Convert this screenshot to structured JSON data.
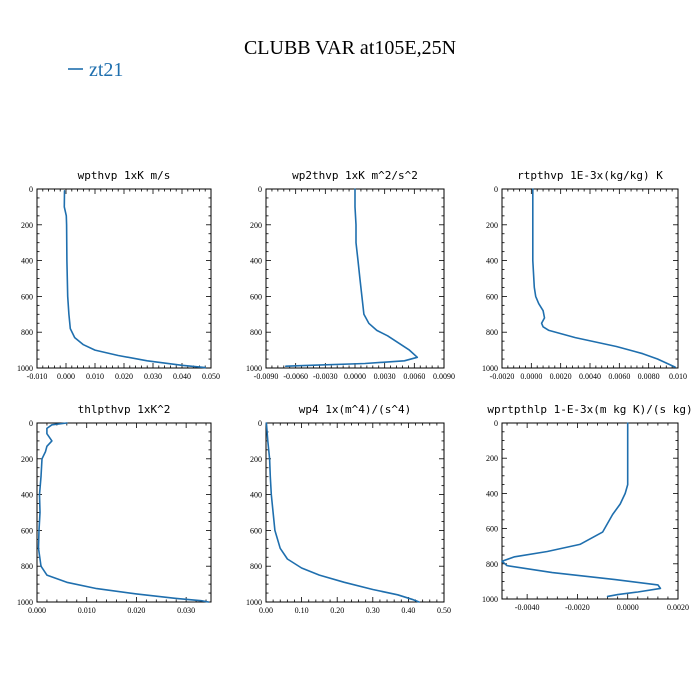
{
  "title": "CLUBB VAR at105E,25N",
  "legend": {
    "label": "zt21",
    "color": "#1f6fae"
  },
  "chart_data": [
    {
      "type": "line",
      "title": "wpthvp  1xK m/s",
      "xlim": [
        -0.01,
        0.05
      ],
      "ylim": [
        0,
        1000
      ],
      "y_inverted": true,
      "xticks": [
        -0.01,
        0.0,
        0.01,
        0.02,
        0.03,
        0.04,
        0.05
      ],
      "xtick_labels": [
        "-0.010",
        "0.000",
        "0.010",
        "0.020",
        "0.030",
        "0.040",
        "0.050"
      ],
      "yticks": [
        0,
        200,
        400,
        600,
        800,
        1000
      ],
      "series": [
        {
          "x": [
            -0.0005,
            -0.0006,
            0.0001,
            0.0002,
            0.0003,
            0.0006,
            0.001,
            0.0015,
            0.003,
            0.006,
            0.01,
            0.018,
            0.028,
            0.04,
            0.048
          ],
          "y": [
            10,
            100,
            150,
            200,
            400,
            600,
            700,
            780,
            830,
            870,
            900,
            930,
            960,
            985,
            998
          ]
        }
      ]
    },
    {
      "type": "line",
      "title": "wp2thvp  1xK m^2/s^2",
      "xlim": [
        -0.009,
        0.009
      ],
      "ylim": [
        0,
        1000
      ],
      "y_inverted": true,
      "xticks": [
        -0.009,
        -0.006,
        -0.003,
        0.0,
        0.003,
        0.006,
        0.009
      ],
      "xtick_labels": [
        "-0.0090",
        "-0.0060",
        "-0.0030",
        "0.0000",
        "0.0030",
        "0.0060",
        "0.0090"
      ],
      "yticks": [
        0,
        200,
        400,
        600,
        800,
        1000
      ],
      "series": [
        {
          "x": [
            0.0,
            0.0,
            0.0001,
            0.0001,
            0.0003,
            0.0005,
            0.0007,
            0.0009,
            0.0014,
            0.0022,
            0.0033,
            0.0044,
            0.0055,
            0.0063,
            0.005,
            0.001,
            -0.0045,
            -0.007
          ],
          "y": [
            0,
            100,
            200,
            300,
            400,
            500,
            600,
            700,
            750,
            790,
            820,
            860,
            900,
            940,
            960,
            975,
            985,
            990
          ]
        }
      ]
    },
    {
      "type": "line",
      "title": "rtpthvp  1E-3x(kg/kg) K",
      "xlim": [
        -0.002,
        0.01
      ],
      "ylim": [
        0,
        1000
      ],
      "y_inverted": true,
      "xticks": [
        -0.002,
        0.0,
        0.002,
        0.004,
        0.006,
        0.008,
        0.01
      ],
      "xtick_labels": [
        "-0.0020",
        "0.0000",
        "0.0020",
        "0.0040",
        "0.0060",
        "0.0080",
        "0.010"
      ],
      "yticks": [
        0,
        200,
        400,
        600,
        800,
        1000
      ],
      "series": [
        {
          "x": [
            0.0001,
            0.0001,
            0.0001,
            0.0002,
            0.0003,
            0.0005,
            0.0008,
            0.0009,
            0.0007,
            0.0008,
            0.0012,
            0.003,
            0.0058,
            0.0076,
            0.0086,
            0.0094,
            0.0098
          ],
          "y": [
            0,
            200,
            400,
            550,
            600,
            640,
            680,
            720,
            750,
            770,
            790,
            830,
            880,
            920,
            950,
            980,
            995
          ]
        }
      ]
    },
    {
      "type": "line",
      "title": "thlpthvp  1xK^2",
      "xlim": [
        0.0,
        0.035
      ],
      "ylim": [
        0,
        1000
      ],
      "y_inverted": true,
      "xticks": [
        0.0,
        0.01,
        0.02,
        0.03
      ],
      "xtick_labels": [
        "0.000",
        "0.010",
        "0.020",
        "0.030"
      ],
      "yticks": [
        0,
        200,
        400,
        600,
        800,
        1000
      ],
      "series": [
        {
          "x": [
            0.006,
            0.003,
            0.002,
            0.002,
            0.003,
            0.002,
            0.0017,
            0.001,
            0.0008,
            0.0005,
            0.0006,
            0.0004,
            0.0003,
            0.0008,
            0.002,
            0.006,
            0.012,
            0.02,
            0.028,
            0.033,
            0.0345
          ],
          "y": [
            0,
            10,
            30,
            60,
            100,
            130,
            160,
            200,
            300,
            400,
            500,
            600,
            700,
            800,
            850,
            890,
            925,
            955,
            980,
            993,
            1000
          ]
        }
      ]
    },
    {
      "type": "line",
      "title": "wp4  1x(m^4)/(s^4)",
      "xlim": [
        0.0,
        0.5
      ],
      "ylim": [
        0,
        1000
      ],
      "y_inverted": true,
      "xticks": [
        0.0,
        0.1,
        0.2,
        0.3,
        0.4,
        0.5
      ],
      "xtick_labels": [
        "0.00",
        "0.10",
        "0.20",
        "0.30",
        "0.40",
        "0.50"
      ],
      "yticks": [
        0,
        200,
        400,
        600,
        800,
        1000
      ],
      "series": [
        {
          "x": [
            0.001,
            0.005,
            0.01,
            0.012,
            0.015,
            0.02,
            0.025,
            0.04,
            0.06,
            0.1,
            0.15,
            0.22,
            0.3,
            0.37,
            0.41,
            0.43
          ],
          "y": [
            0,
            100,
            200,
            300,
            400,
            500,
            600,
            700,
            760,
            810,
            850,
            890,
            930,
            960,
            985,
            1000
          ]
        }
      ]
    },
    {
      "type": "line",
      "title": "wprtpthlp  1-E-3x(m kg K)/(s kg)",
      "xlim": [
        -0.005,
        0.002
      ],
      "ylim": [
        0,
        1000
      ],
      "y_inverted": true,
      "xticks": [
        -0.004,
        -0.002,
        0.0,
        0.002
      ],
      "xtick_labels": [
        "-0.0040",
        "-0.0020",
        "0.0000",
        "0.0020"
      ],
      "yticks": [
        0,
        200,
        400,
        600,
        800,
        1000
      ],
      "series": [
        {
          "x": [
            0.0,
            0.0,
            0.0,
            -0.0001,
            -0.0003,
            -0.0006,
            -0.001,
            -0.0019,
            -0.0032,
            -0.0045,
            -0.005,
            -0.0048,
            -0.003,
            -0.0005,
            0.0012,
            0.0013,
            0.0004,
            -0.0004,
            -0.0008
          ],
          "y": [
            0,
            200,
            350,
            400,
            460,
            520,
            620,
            690,
            730,
            760,
            785,
            810,
            850,
            890,
            920,
            940,
            960,
            975,
            985
          ]
        }
      ]
    }
  ]
}
